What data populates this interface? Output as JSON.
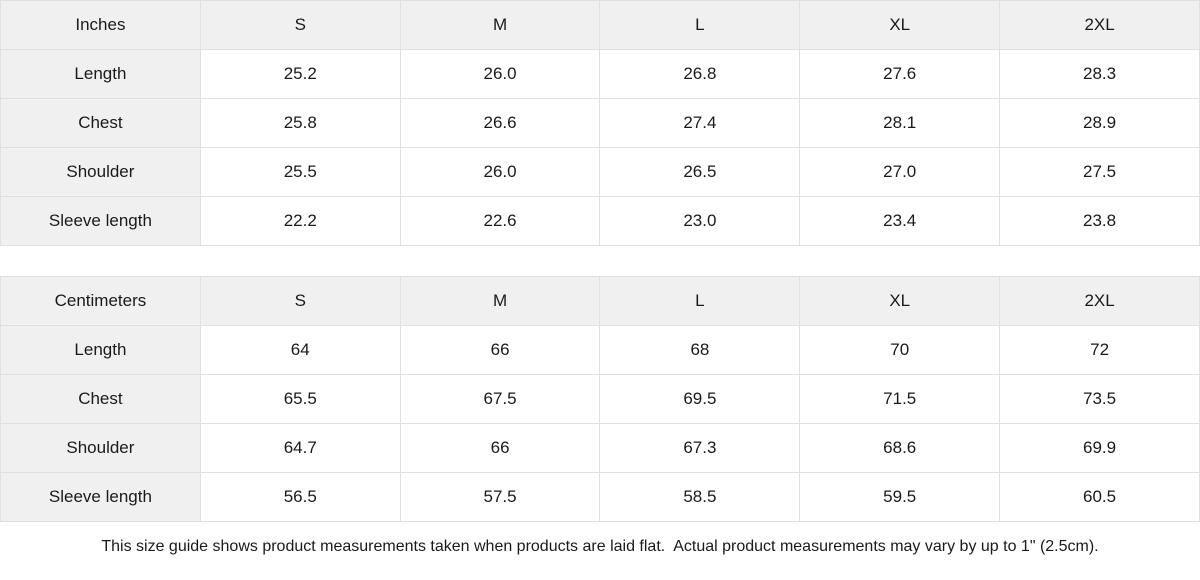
{
  "colors": {
    "header_bg": "#f0f0f0",
    "cell_bg": "#ffffff",
    "border": "#e0e0e0",
    "text": "#1a1a1a"
  },
  "chart_data": [
    {
      "type": "table",
      "unit": "Inches",
      "columns": [
        "S",
        "M",
        "L",
        "XL",
        "2XL"
      ],
      "rows": [
        {
          "label": "Length",
          "values": [
            "25.2",
            "26.0",
            "26.8",
            "27.6",
            "28.3"
          ]
        },
        {
          "label": "Chest",
          "values": [
            "25.8",
            "26.6",
            "27.4",
            "28.1",
            "28.9"
          ]
        },
        {
          "label": "Shoulder",
          "values": [
            "25.5",
            "26.0",
            "26.5",
            "27.0",
            "27.5"
          ]
        },
        {
          "label": "Sleeve length",
          "values": [
            "22.2",
            "22.6",
            "23.0",
            "23.4",
            "23.8"
          ]
        }
      ]
    },
    {
      "type": "table",
      "unit": "Centimeters",
      "columns": [
        "S",
        "M",
        "L",
        "XL",
        "2XL"
      ],
      "rows": [
        {
          "label": "Length",
          "values": [
            "64",
            "66",
            "68",
            "70",
            "72"
          ]
        },
        {
          "label": "Chest",
          "values": [
            "65.5",
            "67.5",
            "69.5",
            "71.5",
            "73.5"
          ]
        },
        {
          "label": "Shoulder",
          "values": [
            "64.7",
            "66",
            "67.3",
            "68.6",
            "69.9"
          ]
        },
        {
          "label": "Sleeve length",
          "values": [
            "56.5",
            "57.5",
            "58.5",
            "59.5",
            "60.5"
          ]
        }
      ]
    }
  ],
  "footer": {
    "note": "This size guide shows product measurements taken when products are laid flat.  Actual product measurements may vary by up to 1\" (2.5cm)."
  }
}
